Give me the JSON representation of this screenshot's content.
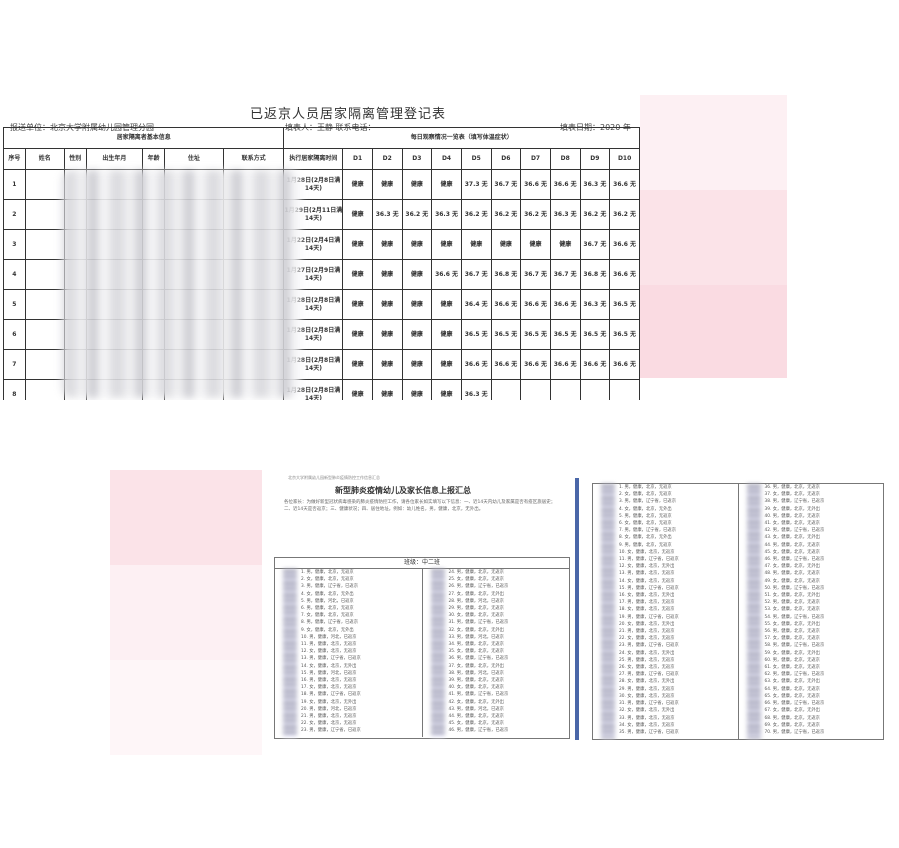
{
  "doc1": {
    "title": "已返京人员居家隔离管理登记表",
    "unit": "报送单位：北京大学附属幼儿园管理分园",
    "filler": "填表人：王静   联系电话：",
    "date": "填表日期：2020 年",
    "group_left": "居家隔离者基本信息",
    "group_right": "每日观察情况一览表（填写体温症状）",
    "headers": [
      "序号",
      "姓名",
      "性别",
      "出生年月",
      "年龄",
      "住址",
      "联系方式",
      "执行居家隔离时间"
    ],
    "day_headers": [
      "D1",
      "D2",
      "D3",
      "D4",
      "D5",
      "D6",
      "D7",
      "D8",
      "D9",
      "D10"
    ],
    "rows": [
      {
        "no": "1",
        "period": "1月28日(2月8日满14天)",
        "days": [
          "健康",
          "健康",
          "健康",
          "健康",
          "37.3 无",
          "36.7 无",
          "36.6 无",
          "36.6 无",
          "36.3 无",
          "36.6 无"
        ]
      },
      {
        "no": "2",
        "period": "1月29日(2月11日满14天)",
        "days": [
          "健康",
          "36.3 无",
          "36.2 无",
          "36.3 无",
          "36.2 无",
          "36.2 无",
          "36.2 无",
          "36.3 无",
          "36.2 无",
          "36.2 无"
        ]
      },
      {
        "no": "3",
        "period": "1月22日(2月4日满14天)",
        "days": [
          "健康",
          "健康",
          "健康",
          "健康",
          "健康",
          "健康",
          "健康",
          "健康",
          "36.7 无",
          "36.6 无"
        ]
      },
      {
        "no": "4",
        "period": "1月27日(2月9日满14天)",
        "days": [
          "健康",
          "健康",
          "健康",
          "36.6 无",
          "36.7 无",
          "36.8 无",
          "36.7 无",
          "36.7 无",
          "36.8 无",
          "36.6 无"
        ]
      },
      {
        "no": "5",
        "period": "1月28日(2月8日满14天)",
        "days": [
          "健康",
          "健康",
          "健康",
          "健康",
          "36.4 无",
          "36.6 无",
          "36.6 无",
          "36.6 无",
          "36.3 无",
          "36.5 无"
        ]
      },
      {
        "no": "6",
        "period": "1月28日(2月8日满14天)",
        "days": [
          "健康",
          "健康",
          "健康",
          "健康",
          "36.5 无",
          "36.5 无",
          "36.5 无",
          "36.5 无",
          "36.5 无",
          "36.5 无"
        ]
      },
      {
        "no": "7",
        "period": "1月28日(2月8日满14天)",
        "days": [
          "健康",
          "健康",
          "健康",
          "健康",
          "36.6 无",
          "36.6 无",
          "36.6 无",
          "36.6 无",
          "36.6 无",
          "36.6 无"
        ]
      },
      {
        "no": "8",
        "period": "1月28日(2月8日满14天)",
        "days": [
          "健康",
          "健康",
          "健康",
          "健康",
          "36.3 无",
          "",
          "",
          "",
          "",
          ""
        ]
      }
    ]
  },
  "doc2": {
    "header": "北京大学附属幼儿园新型肺炎疫情防控工作信息汇总",
    "title": "新型肺炎疫情幼儿及家长信息上报汇总",
    "paragraph": "各位家长：为做好新型冠状病毒感染的肺炎疫情防控工作，请各位家长如实填写以下信息：一、近14天内幼儿及家属是否有疫区旅居史；二、近14天是否返京；三、健康状况；四、居住地址。例如：幼儿姓名，男，健康，北京，无外出。",
    "class_label": "班级：中二班",
    "items": [
      "男，健康，北京，无返京",
      "女，健康，北京，无返京",
      "男，健康，辽宁省，已返京",
      "女，健康，北京，无外出",
      "男，健康，河北，已返京"
    ]
  },
  "doc3": {
    "items": [
      "男，健康，北京，无返京",
      "女，健康，北京，无返京",
      "男，健康，辽宁省，已返京",
      "女，健康，北京，无外出"
    ]
  },
  "colors": {
    "highlight": "#fbe3e8",
    "divider": "#4a67a8"
  }
}
